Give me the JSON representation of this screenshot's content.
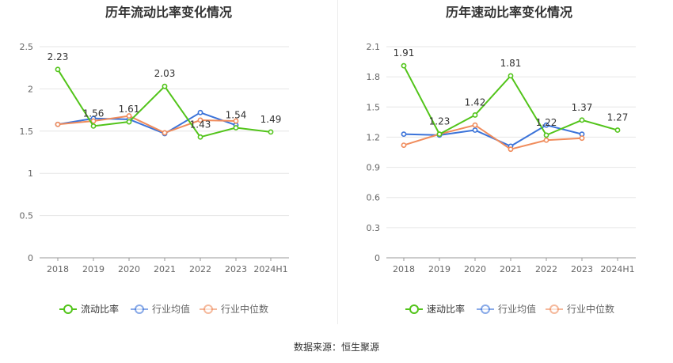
{
  "footer": {
    "source": "数据来源：恒生聚源"
  },
  "colors": {
    "main": "#52c41a",
    "avg": "#3b73d9",
    "median": "#f08c5c",
    "grid": "#e6e6e6",
    "axis": "#999999"
  },
  "chart_data": [
    {
      "type": "line",
      "title": "历年流动比率变化情况",
      "categories": [
        "2018",
        "2019",
        "2020",
        "2021",
        "2022",
        "2023",
        "2024H1"
      ],
      "ylim": [
        0,
        2.5
      ],
      "yticks": [
        "0",
        "0.5",
        "1",
        "1.5",
        "2",
        "2.5"
      ],
      "grid": true,
      "legend_position": "bottom",
      "series": [
        {
          "name": "流动比率",
          "color": "#52c41a",
          "values": [
            2.23,
            1.56,
            1.61,
            2.03,
            1.43,
            1.54,
            1.49
          ],
          "labels": [
            "2.23",
            "1.56",
            "1.61",
            "2.03",
            "1.43",
            "1.54",
            "1.49"
          ]
        },
        {
          "name": "行业均值",
          "color": "#3b73d9",
          "values": [
            1.58,
            1.65,
            1.64,
            1.47,
            1.72,
            1.57,
            null
          ]
        },
        {
          "name": "行业中位数",
          "color": "#f08c5c",
          "values": [
            1.58,
            1.62,
            1.68,
            1.48,
            1.63,
            1.62,
            null
          ]
        }
      ]
    },
    {
      "type": "line",
      "title": "历年速动比率变化情况",
      "categories": [
        "2018",
        "2019",
        "2020",
        "2021",
        "2022",
        "2023",
        "2024H1"
      ],
      "ylim": [
        0,
        2.1
      ],
      "yticks": [
        "0",
        "0.3",
        "0.6",
        "0.9",
        "1.2",
        "1.5",
        "1.8",
        "2.1"
      ],
      "grid": true,
      "legend_position": "bottom",
      "series": [
        {
          "name": "速动比率",
          "color": "#52c41a",
          "values": [
            1.91,
            1.23,
            1.42,
            1.81,
            1.22,
            1.37,
            1.27
          ],
          "labels": [
            "1.91",
            "1.23",
            "1.42",
            "1.81",
            "1.22",
            "1.37",
            "1.27"
          ]
        },
        {
          "name": "行业均值",
          "color": "#3b73d9",
          "values": [
            1.23,
            1.22,
            1.27,
            1.11,
            1.32,
            1.23,
            null
          ]
        },
        {
          "name": "行业中位数",
          "color": "#f08c5c",
          "values": [
            1.12,
            1.23,
            1.32,
            1.08,
            1.17,
            1.19,
            null
          ]
        }
      ]
    }
  ]
}
